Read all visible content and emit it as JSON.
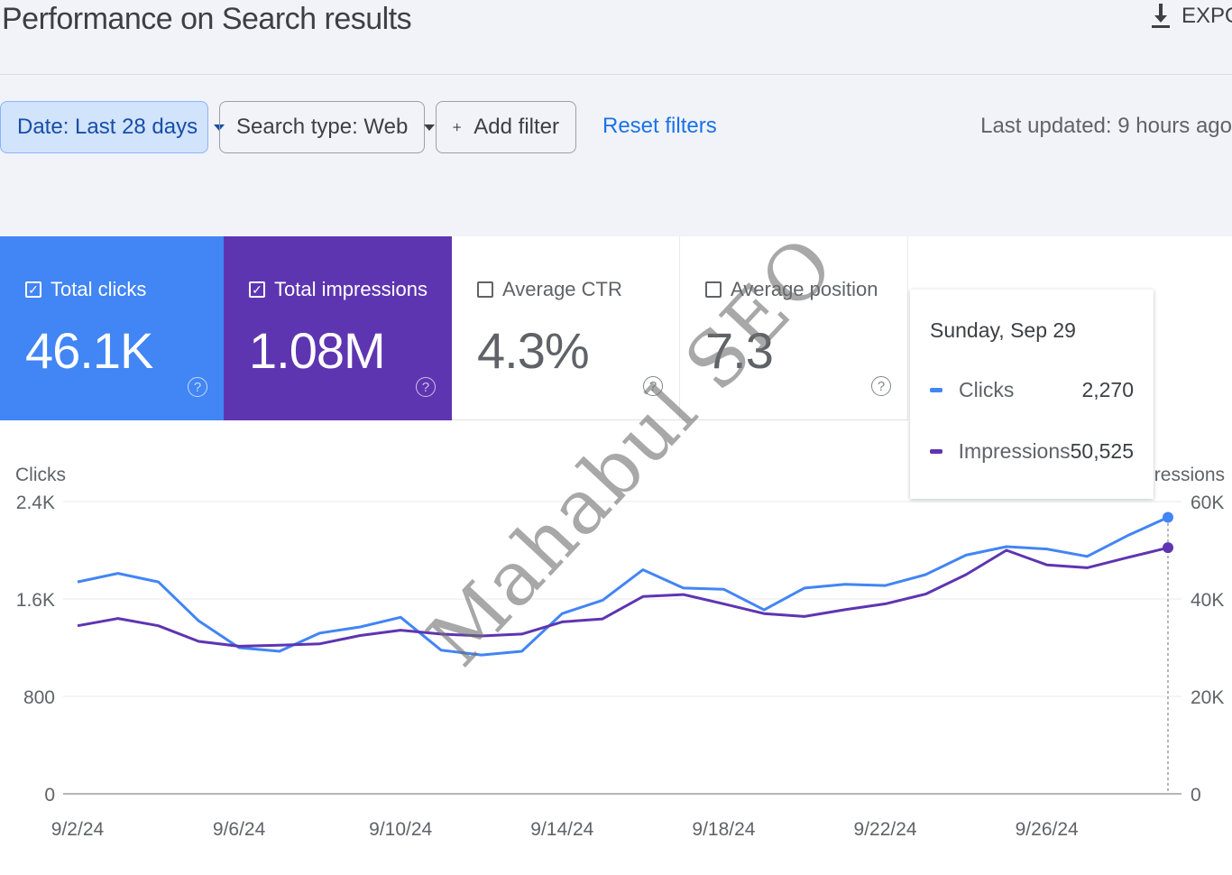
{
  "header": {
    "title": "Performance on Search results",
    "export_label": "EXPORT"
  },
  "filters": {
    "date": "Date: Last 28 days",
    "search_type": "Search type: Web",
    "add_filter": "Add filter",
    "reset": "Reset filters",
    "last_updated": "Last updated: 9 hours ago"
  },
  "metrics": [
    {
      "label": "Total clicks",
      "value": "46.1K",
      "checked": true,
      "color": "#4285f4"
    },
    {
      "label": "Total impressions",
      "value": "1.08M",
      "checked": true,
      "color": "#5e35b1"
    },
    {
      "label": "Average CTR",
      "value": "4.3%",
      "checked": false
    },
    {
      "label": "Average position",
      "value": "7.3",
      "checked": false
    }
  ],
  "tooltip": {
    "date": "Sunday, Sep 29",
    "rows": [
      {
        "name": "Clicks",
        "value": "2,270",
        "color": "#4285f4"
      },
      {
        "name": "Impressions",
        "value": "50,525",
        "color": "#5e35b1"
      }
    ]
  },
  "watermark": "Mahabul SEO",
  "chart_data": {
    "type": "line",
    "x": [
      "9/2/24",
      "9/3/24",
      "9/4/24",
      "9/5/24",
      "9/6/24",
      "9/7/24",
      "9/8/24",
      "9/9/24",
      "9/10/24",
      "9/11/24",
      "9/12/24",
      "9/13/24",
      "9/14/24",
      "9/15/24",
      "9/16/24",
      "9/17/24",
      "9/18/24",
      "9/19/24",
      "9/20/24",
      "9/21/24",
      "9/22/24",
      "9/23/24",
      "9/24/24",
      "9/25/24",
      "9/26/24",
      "9/27/24",
      "9/28/24",
      "9/29/24"
    ],
    "x_ticks": [
      "9/2/24",
      "9/6/24",
      "9/10/24",
      "9/14/24",
      "9/18/24",
      "9/22/24",
      "9/26/24"
    ],
    "left_axis": {
      "label": "Clicks",
      "ticks": [
        "0",
        "800",
        "1.6K",
        "2.4K"
      ],
      "range": [
        0,
        2400
      ]
    },
    "right_axis": {
      "label": "Impressions",
      "ticks": [
        "0",
        "20K",
        "40K",
        "60K"
      ],
      "range": [
        0,
        60000
      ]
    },
    "series": [
      {
        "name": "Clicks",
        "axis": "left",
        "color": "#4285f4",
        "values": [
          1740,
          1810,
          1740,
          1420,
          1200,
          1170,
          1320,
          1370,
          1450,
          1180,
          1140,
          1170,
          1480,
          1590,
          1840,
          1690,
          1680,
          1510,
          1690,
          1720,
          1710,
          1800,
          1960,
          2030,
          2010,
          1950,
          2120,
          2270
        ]
      },
      {
        "name": "Impressions",
        "axis": "left_scaled",
        "color": "#5e35b1",
        "values": [
          34500,
          36000,
          34500,
          31300,
          30300,
          30500,
          30800,
          32500,
          33600,
          32800,
          32400,
          32800,
          35300,
          35900,
          40500,
          40900,
          39000,
          37000,
          36400,
          37800,
          39000,
          41000,
          45000,
          50000,
          47000,
          46400,
          48500,
          50525
        ]
      }
    ],
    "grid": true,
    "legend": "none"
  }
}
